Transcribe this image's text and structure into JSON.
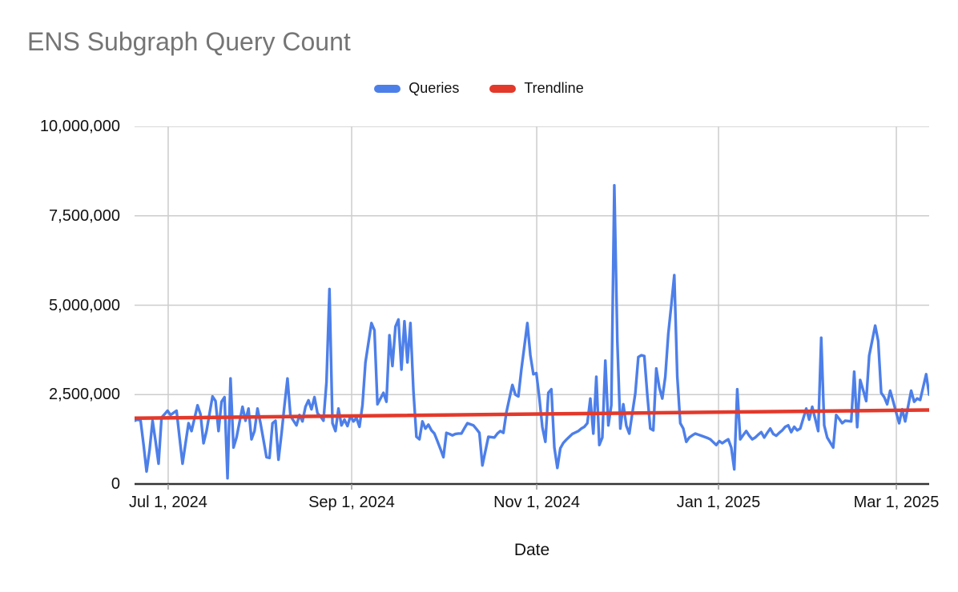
{
  "title": "ENS Subgraph Query Count",
  "legend": [
    {
      "label": "Queries",
      "color": "#4D7FE9"
    },
    {
      "label": "Trendline",
      "color": "#E3392B"
    }
  ],
  "axes": {
    "x": {
      "label": "Date",
      "ticks": [
        {
          "label": "Jul 1, 2024",
          "pos": 0.0423
        },
        {
          "label": "Sep 1, 2024",
          "pos": 0.2732
        },
        {
          "label": "Nov 1, 2024",
          "pos": 0.5061
        },
        {
          "label": "Jan 1, 2025",
          "pos": 0.7349
        },
        {
          "label": "Mar 1, 2025",
          "pos": 0.9587
        }
      ]
    },
    "y": {
      "ticks": [
        {
          "label": "0",
          "value": 0
        },
        {
          "label": "2,500,000",
          "value": 2500000
        },
        {
          "label": "5,000,000",
          "value": 5000000
        },
        {
          "label": "7,500,000",
          "value": 7500000
        },
        {
          "label": "10,000,000",
          "value": 10000000
        }
      ]
    }
  },
  "chart_data": {
    "type": "line",
    "title": "ENS Subgraph Query Count",
    "xlabel": "Date",
    "ylabel": "",
    "ylim": [
      0,
      10000000
    ],
    "grid": true,
    "legend_position": "top",
    "x_tick_labels": [
      "Jul 1, 2024",
      "Sep 1, 2024",
      "Nov 1, 2024",
      "Jan 1, 2025",
      "Mar 1, 2025"
    ],
    "x_start_date": "2024-06-20",
    "x_end_date": "2025-03-12",
    "x_unit": "day",
    "value_unit": "queries per day (millions)",
    "series": [
      {
        "name": "Queries",
        "color": "#4D7FE9",
        "values_millions": [
          1.77,
          1.8,
          1.78,
          1.1,
          0.35,
          0.95,
          1.77,
          1.2,
          0.57,
          1.86,
          1.95,
          2.05,
          1.93,
          1.99,
          2.05,
          1.3,
          0.57,
          1.14,
          1.7,
          1.48,
          1.84,
          2.2,
          1.95,
          1.14,
          1.48,
          1.97,
          2.45,
          2.32,
          1.48,
          2.3,
          2.43,
          0.16,
          2.95,
          1.02,
          1.3,
          1.73,
          2.16,
          1.77,
          2.11,
          1.25,
          1.48,
          2.11,
          1.7,
          1.23,
          0.75,
          0.73,
          1.7,
          1.77,
          0.68,
          1.4,
          2.2,
          2.95,
          1.9,
          1.77,
          1.64,
          1.93,
          1.75,
          2.16,
          2.34,
          2.09,
          2.43,
          1.98,
          1.89,
          1.77,
          2.84,
          5.45,
          1.7,
          1.48,
          2.11,
          1.64,
          1.8,
          1.62,
          1.9,
          1.75,
          1.85,
          1.6,
          2.2,
          3.4,
          3.95,
          4.5,
          4.3,
          2.23,
          2.39,
          2.55,
          2.3,
          4.16,
          3.3,
          4.4,
          4.6,
          3.2,
          4.55,
          3.4,
          4.5,
          2.6,
          1.32,
          1.25,
          1.75,
          1.55,
          1.66,
          1.5,
          1.41,
          1.2,
          0.98,
          0.75,
          1.43,
          1.4,
          1.36,
          1.4,
          1.41,
          1.41,
          1.56,
          1.7,
          1.67,
          1.64,
          1.54,
          1.43,
          0.52,
          0.92,
          1.32,
          1.31,
          1.3,
          1.41,
          1.48,
          1.43,
          2.0,
          2.39,
          2.77,
          2.5,
          2.45,
          3.2,
          3.85,
          4.5,
          3.6,
          3.07,
          3.1,
          2.4,
          1.59,
          1.18,
          2.55,
          2.65,
          1.02,
          0.45,
          1.0,
          1.15,
          1.24,
          1.32,
          1.4,
          1.44,
          1.48,
          1.55,
          1.6,
          1.7,
          2.39,
          1.41,
          3.0,
          1.09,
          1.3,
          3.45,
          1.64,
          2.2,
          8.35,
          4.0,
          1.55,
          2.23,
          1.63,
          1.41,
          1.98,
          2.54,
          3.55,
          3.6,
          3.58,
          2.5,
          1.55,
          1.5,
          3.23,
          2.7,
          2.39,
          3.0,
          4.2,
          5.0,
          5.84,
          3.0,
          1.7,
          1.55,
          1.18,
          1.3,
          1.36,
          1.41,
          1.38,
          1.35,
          1.32,
          1.29,
          1.25,
          1.17,
          1.09,
          1.2,
          1.14,
          1.2,
          1.25,
          1.02,
          0.41,
          2.65,
          1.25,
          1.37,
          1.48,
          1.35,
          1.25,
          1.3,
          1.38,
          1.45,
          1.3,
          1.43,
          1.55,
          1.4,
          1.35,
          1.43,
          1.5,
          1.6,
          1.64,
          1.45,
          1.6,
          1.5,
          1.55,
          1.83,
          2.11,
          1.8,
          2.16,
          1.82,
          1.48,
          4.09,
          1.64,
          1.3,
          1.16,
          1.02,
          1.93,
          1.82,
          1.7,
          1.77,
          1.76,
          1.75,
          3.14,
          1.59,
          2.91,
          2.62,
          2.32,
          3.59,
          4.01,
          4.43,
          4.0,
          2.55,
          2.43,
          2.23,
          2.61,
          2.31,
          2.0,
          1.7,
          2.09,
          1.75,
          2.18,
          2.61,
          2.3,
          2.39,
          2.35,
          2.71,
          3.07,
          2.5
        ]
      },
      {
        "name": "Trendline",
        "color": "#E3392B",
        "fit": "linear",
        "start_millions": 1.84,
        "end_millions": 2.07
      }
    ]
  },
  "colors": {
    "queries_line": "#4D7FE9",
    "trend_line": "#E3392B",
    "gridline": "#cccccc",
    "axis_line": "#333333",
    "tick_mark": "#999999",
    "title_text": "#757575",
    "label_text": "#111111"
  }
}
